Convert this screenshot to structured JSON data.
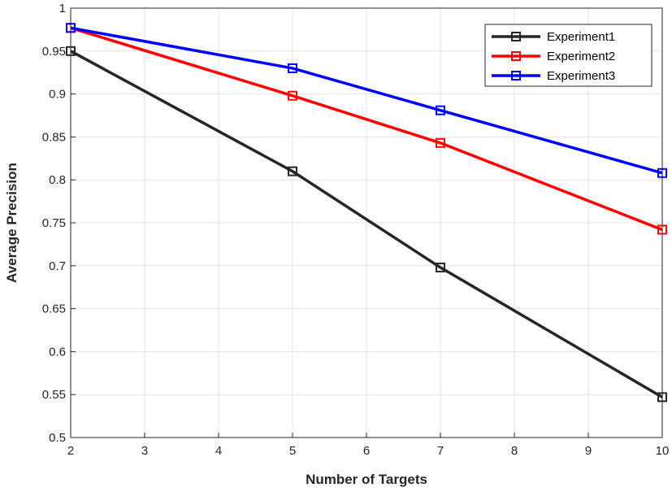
{
  "chart_data": {
    "type": "line",
    "xlabel": "Number of Targets",
    "ylabel": "Average Precision",
    "xlim": [
      2,
      10
    ],
    "ylim": [
      0.5,
      1
    ],
    "xticks": [
      2,
      3,
      4,
      5,
      6,
      7,
      8,
      9,
      10
    ],
    "yticks": [
      0.5,
      0.55,
      0.6,
      0.65,
      0.7,
      0.75,
      0.8,
      0.85,
      0.9,
      0.95,
      1
    ],
    "ytick_labels": [
      "0.5",
      "0.55",
      "0.6",
      "0.65",
      "0.7",
      "0.75",
      "0.8",
      "0.85",
      "0.9",
      "0.95",
      "1"
    ],
    "grid": true,
    "legend_position": "top-right",
    "marker": "square",
    "x": [
      2,
      5,
      7,
      10
    ],
    "series": [
      {
        "name": "Experiment1",
        "color": "#262626",
        "values": [
          0.95,
          0.81,
          0.698,
          0.547
        ]
      },
      {
        "name": "Experiment2",
        "color": "#ff0000",
        "values": [
          0.977,
          0.898,
          0.843,
          0.742
        ]
      },
      {
        "name": "Experiment3",
        "color": "#0000ff",
        "values": [
          0.977,
          0.93,
          0.881,
          0.808
        ]
      }
    ]
  }
}
